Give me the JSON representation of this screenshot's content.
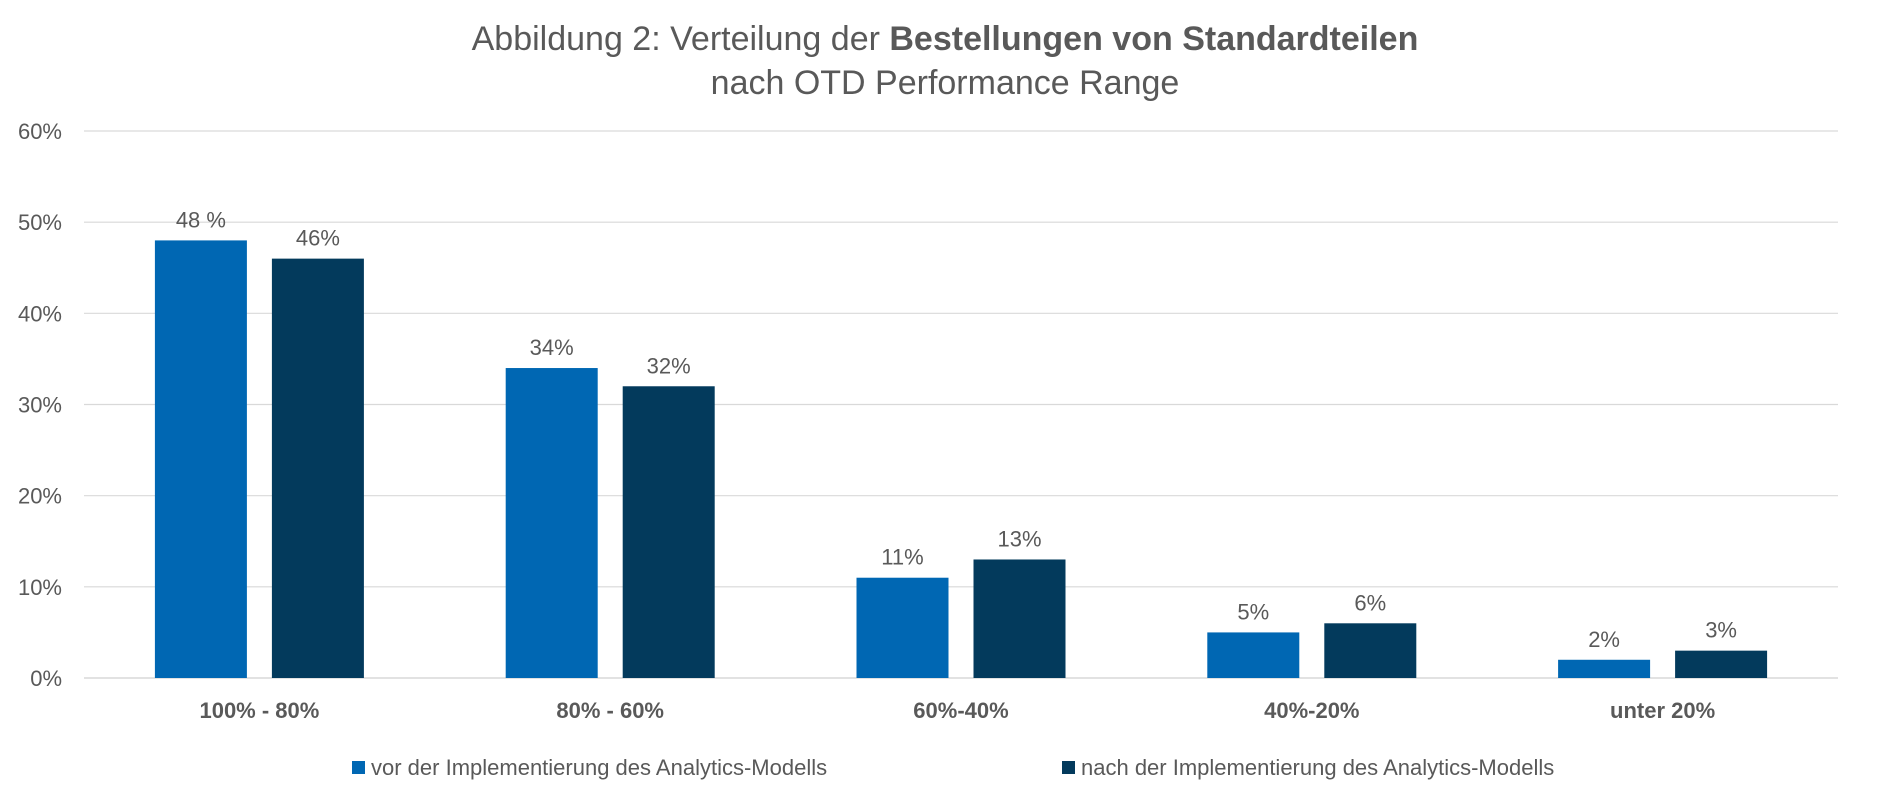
{
  "chart_data": {
    "type": "bar",
    "title_parts": [
      {
        "text": "Abbildung 2: Verteilung der ",
        "bold": false
      },
      {
        "text": "Bestellungen von Standardteilen",
        "bold": true
      }
    ],
    "subtitle": "nach OTD Performance Range",
    "categories": [
      "100% - 80%",
      "80% - 60%",
      "60%-40%",
      "40%-20%",
      "unter 20%"
    ],
    "series": [
      {
        "name": "vor der Implementierung des Analytics-Modells",
        "color": "#0067B3",
        "values": [
          48,
          34,
          11,
          5,
          2
        ],
        "labels": [
          "48 %",
          "34%",
          "11%",
          "5%",
          "2%"
        ]
      },
      {
        "name": "nach der Implementierung des Analytics-Modells",
        "color": "#033A5C",
        "values": [
          46,
          32,
          13,
          6,
          3
        ],
        "labels": [
          "46%",
          "32%",
          "13%",
          "6%",
          "3%"
        ]
      }
    ],
    "yticks": [
      "0%",
      "10%",
      "20%",
      "30%",
      "40%",
      "50%",
      "60%"
    ],
    "ylim": [
      0,
      60
    ],
    "grid": true,
    "legend_position": "bottom"
  }
}
